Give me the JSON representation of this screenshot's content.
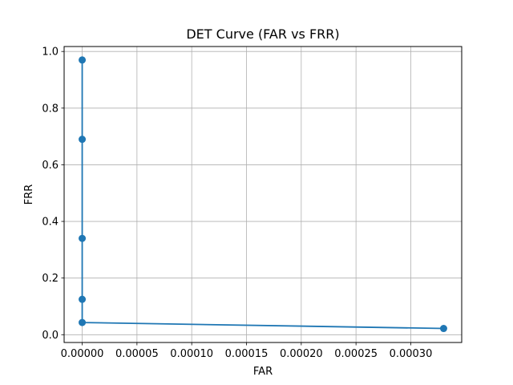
{
  "chart_data": {
    "type": "line",
    "title": "DET Curve (FAR vs FRR)",
    "xlabel": "FAR",
    "ylabel": "FRR",
    "xlim": [
      -1.65e-05,
      0.0003465
    ],
    "ylim": [
      -0.0275,
      1.0175
    ],
    "grid": true,
    "marker": "circle",
    "color": "#1f77b4",
    "x_ticks": [
      {
        "value": 0.0,
        "label": "0.00000"
      },
      {
        "value": 5e-05,
        "label": "0.00005"
      },
      {
        "value": 0.0001,
        "label": "0.00010"
      },
      {
        "value": 0.00015,
        "label": "0.00015"
      },
      {
        "value": 0.0002,
        "label": "0.00020"
      },
      {
        "value": 0.00025,
        "label": "0.00025"
      },
      {
        "value": 0.0003,
        "label": "0.00030"
      }
    ],
    "y_ticks": [
      {
        "value": 0.0,
        "label": "0.0"
      },
      {
        "value": 0.2,
        "label": "0.2"
      },
      {
        "value": 0.4,
        "label": "0.4"
      },
      {
        "value": 0.6,
        "label": "0.6"
      },
      {
        "value": 0.8,
        "label": "0.8"
      },
      {
        "value": 1.0,
        "label": "1.0"
      }
    ],
    "series": [
      {
        "x": [
          0.0,
          0.0,
          0.0,
          0.0,
          0.0,
          0.00033
        ],
        "y": [
          0.97,
          0.69,
          0.34,
          0.125,
          0.043,
          0.022
        ]
      }
    ]
  }
}
